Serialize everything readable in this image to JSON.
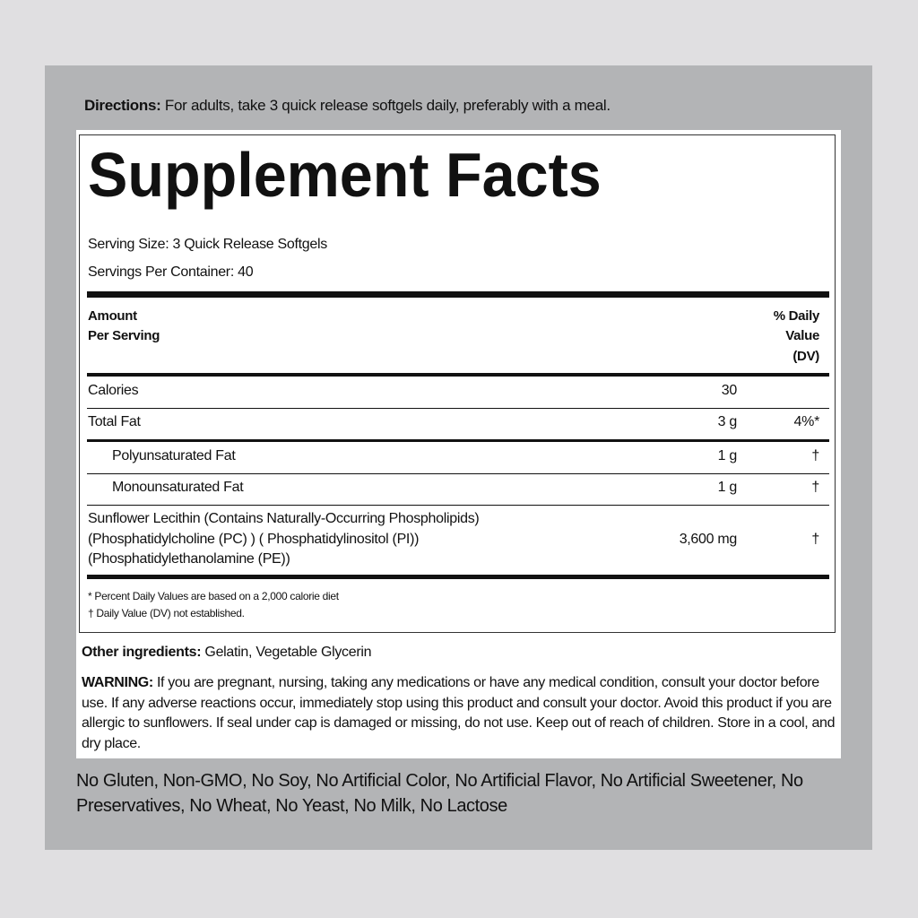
{
  "directions": {
    "label": "Directions:",
    "text": " For adults, take 3 quick release softgels daily, preferably with a meal."
  },
  "facts": {
    "title": "Supplement Facts",
    "serving_size": "Serving Size: 3 Quick Release Softgels",
    "servings_per_container": "Servings Per Container: 40",
    "amount_header_1": "Amount",
    "amount_header_2": "Per Serving",
    "dv_header_1": "% Daily",
    "dv_header_2": "Value",
    "dv_header_3": "(DV)",
    "rows": [
      {
        "name": "Calories",
        "amount": "30",
        "dv": ""
      },
      {
        "name": "Total Fat",
        "amount": "3 g",
        "dv": "4%*"
      },
      {
        "name": "Polyunsaturated Fat",
        "amount": "1 g",
        "dv": "†"
      },
      {
        "name": "Monounsaturated Fat",
        "amount": "1 g",
        "dv": "†"
      },
      {
        "name_lines": [
          "Sunflower Lecithin (Contains Naturally-Occurring Phospholipids)",
          "(Phosphatidylcholine (PC) ) ( Phosphatidylinositol (PI))",
          "(Phosphatidylethanolamine (PE))"
        ],
        "amount": "3,600 mg",
        "dv": "†"
      }
    ],
    "footnote_1": "* Percent Daily Values are based on a 2,000 calorie diet",
    "footnote_2": "† Daily Value (DV) not established."
  },
  "other_ingredients": {
    "label": "Other ingredients:",
    "text": " Gelatin, Vegetable Glycerin"
  },
  "warning": {
    "label": "WARNING:",
    "text": " If you are pregnant, nursing, taking any medications or have any medical condition, consult your doctor before use. If any adverse reactions occur, immediately stop using this product and consult your doctor. Avoid this product if you are allergic to sunflowers. If seal under cap is damaged or missing, do not use. Keep out of reach of children. Store in a cool, and dry place."
  },
  "free_from": "No Gluten, Non-GMO, No Soy, No Artificial Color, No Artificial Flavor, No Artificial Sweetener, No Preservatives, No Wheat, No Yeast, No Milk, No Lactose"
}
